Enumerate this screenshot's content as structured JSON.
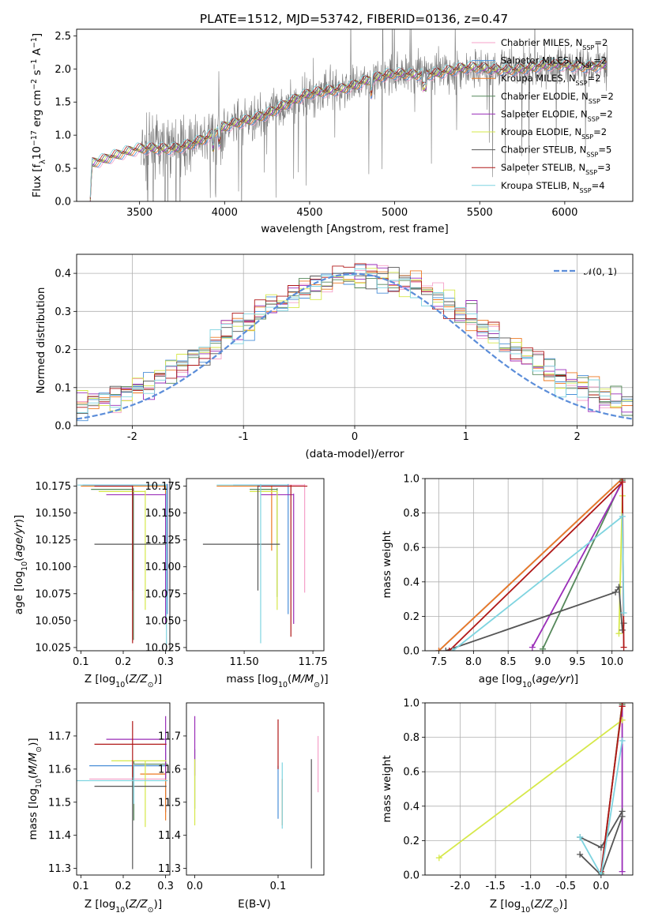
{
  "figure": {
    "title": "PLATE=1512, MJD=53742, FIBERID=0136, z=0.47"
  },
  "colors": {
    "Chabrier MILES": "#f5a0c8",
    "Salpeter MILES": "#4a8fd8",
    "Kroupa MILES": "#ee7a22",
    "Chabrier ELODIE": "#55885a",
    "Salpeter ELODIE": "#9a2db8",
    "Kroupa ELODIE": "#d6e84a",
    "Chabrier STELIB": "#555555",
    "Salpeter STELIB": "#b01818",
    "Kroupa STELIB": "#7fd4e0",
    "data": "#7a7a7a",
    "gaussian": "#5b8dd9",
    "grid": "#b0b0b0"
  },
  "chart_data": [
    {
      "id": "spectrum",
      "type": "line",
      "xlabel": "wavelength [Angstrom, rest frame]",
      "ylabel": "Flux [f_λ 10^-17 erg cm^-2 s^-1 A^-1]",
      "xlim": [
        3130,
        6400
      ],
      "ylim": [
        0,
        2.6
      ],
      "xticks": [
        3500,
        4000,
        4500,
        5000,
        5500,
        6000
      ],
      "yticks": [
        0.0,
        0.5,
        1.0,
        1.5,
        2.0,
        2.5
      ],
      "grid": false,
      "legend_position": "right",
      "continuum_knots": [
        [
          3210,
          0.0
        ],
        [
          3220,
          0.6
        ],
        [
          3250,
          0.63
        ],
        [
          3350,
          0.7
        ],
        [
          3500,
          0.76
        ],
        [
          3700,
          0.82
        ],
        [
          3900,
          0.95
        ],
        [
          4000,
          1.1
        ],
        [
          4200,
          1.3
        ],
        [
          4500,
          1.6
        ],
        [
          4800,
          1.8
        ],
        [
          5000,
          1.9
        ],
        [
          5200,
          1.95
        ],
        [
          5500,
          2.0
        ],
        [
          5800,
          2.02
        ],
        [
          6100,
          2.05
        ],
        [
          6250,
          2.08
        ]
      ],
      "data_range": [
        3510,
        6250
      ],
      "model_range": [
        3210,
        6250
      ],
      "legend": [
        {
          "label": "Chabrier MILES, N",
          "sub": "SSP",
          "suffix": "=2"
        },
        {
          "label": "Salpeter MILES, N",
          "sub": "SSP",
          "suffix": "=2"
        },
        {
          "label": "Kroupa MILES, N",
          "sub": "SSP",
          "suffix": "=2"
        },
        {
          "label": "Chabrier ELODIE, N",
          "sub": "SSP",
          "suffix": "=2"
        },
        {
          "label": "Salpeter ELODIE, N",
          "sub": "SSP",
          "suffix": "=2"
        },
        {
          "label": "Kroupa ELODIE, N",
          "sub": "SSP",
          "suffix": "=2"
        },
        {
          "label": "Chabrier STELIB, N",
          "sub": "SSP",
          "suffix": "=5"
        },
        {
          "label": "Salpeter STELIB, N",
          "sub": "SSP",
          "suffix": "=3"
        },
        {
          "label": "Kroupa STELIB, N",
          "sub": "SSP",
          "suffix": "=4"
        }
      ]
    },
    {
      "id": "residuals",
      "type": "histogram",
      "xlabel": "(data-model)/error",
      "ylabel": "Normed distribution",
      "xlim": [
        -2.5,
        2.5
      ],
      "ylim": [
        0,
        0.45
      ],
      "xticks": [
        -2,
        -1,
        0,
        1,
        2
      ],
      "yticks": [
        0.0,
        0.1,
        0.2,
        0.3,
        0.4
      ],
      "grid": true,
      "bins": 50,
      "gaussian_label": "𝒩(0, 1)",
      "legend_position": "top-right"
    },
    {
      "id": "age-vs-Z",
      "type": "scatter",
      "xlabel": "Z [log10(Z/Z⊙)]",
      "ylabel": "age [log10(age/yr)]",
      "xlim": [
        0.09,
        0.31
      ],
      "ylim": [
        10.022,
        10.182
      ],
      "xticks": [
        0.1,
        0.2,
        0.3
      ],
      "yticks": [
        10.025,
        10.05,
        10.075,
        10.1,
        10.125,
        10.15,
        10.175
      ],
      "points": [
        {
          "model": "Chabrier MILES",
          "x": 0.305,
          "xerr": [
            0.2,
            0.0
          ],
          "y": 10.176,
          "yerr": [
            0.1,
            0.001
          ]
        },
        {
          "model": "Salpeter MILES",
          "x": 0.304,
          "xerr": [
            0.2,
            0.0
          ],
          "y": 10.176,
          "yerr": [
            0.12,
            0.001
          ]
        },
        {
          "model": "Kroupa MILES",
          "x": 0.3,
          "xerr": [
            0.2,
            0.0
          ],
          "y": 10.175,
          "yerr": [
            0.06,
            0.001
          ]
        },
        {
          "model": "Chabrier ELODIE",
          "x": 0.224,
          "xerr": [
            0.1,
            0.0
          ],
          "y": 10.172,
          "yerr": [
            0.14,
            0.001
          ]
        },
        {
          "model": "Salpeter ELODIE",
          "x": 0.3,
          "xerr": [
            0.14,
            0.0
          ],
          "y": 10.167,
          "yerr": [
            0.12,
            0.001
          ]
        },
        {
          "model": "Kroupa ELODIE",
          "x": 0.252,
          "xerr": [
            0.11,
            0.001
          ],
          "y": 10.17,
          "yerr": [
            0.11,
            0.001
          ]
        },
        {
          "model": "Chabrier STELIB",
          "x": 0.222,
          "xerr": [
            0.09,
            0.08
          ],
          "y": 10.121,
          "yerr": [
            0.043,
            0.055
          ]
        },
        {
          "model": "Salpeter STELIB",
          "x": 0.222,
          "xerr": [
            0.09,
            0.0
          ],
          "y": 10.175,
          "yerr": [
            0.146,
            0.001
          ]
        },
        {
          "model": "Kroupa STELIB",
          "x": 0.302,
          "xerr": [
            0.21,
            0.0
          ],
          "y": 10.176,
          "yerr": [
            0.148,
            0.001
          ]
        }
      ]
    },
    {
      "id": "age-vs-mass",
      "type": "scatter",
      "xlabel": "mass [log10(M/M⊙)]",
      "ylabel": "",
      "xlim": [
        11.29,
        11.79
      ],
      "ylim": [
        10.022,
        10.182
      ],
      "xticks": [
        11.5,
        11.75
      ],
      "yticks": [
        10.025,
        10.05,
        10.075,
        10.1,
        10.125,
        10.15,
        10.175
      ],
      "points": [
        {
          "model": "Chabrier MILES",
          "x": 11.72,
          "xerr": [
            0.2,
            0.0
          ],
          "y": 10.176,
          "yerr": [
            0.1,
            0.001
          ]
        },
        {
          "model": "Salpeter MILES",
          "x": 11.66,
          "xerr": [
            0.2,
            0.0
          ],
          "y": 10.176,
          "yerr": [
            0.12,
            0.001
          ]
        },
        {
          "model": "Kroupa MILES",
          "x": 11.6,
          "xerr": [
            0.2,
            0.0
          ],
          "y": 10.175,
          "yerr": [
            0.06,
            0.001
          ]
        },
        {
          "model": "Chabrier ELODIE",
          "x": 11.62,
          "xerr": [
            0.1,
            0.0
          ],
          "y": 10.172,
          "yerr": [
            0.1,
            0.001
          ]
        },
        {
          "model": "Salpeter ELODIE",
          "x": 11.68,
          "xerr": [
            0.12,
            0.0
          ],
          "y": 10.167,
          "yerr": [
            0.12,
            0.001
          ]
        },
        {
          "model": "Kroupa ELODIE",
          "x": 11.62,
          "xerr": [
            0.1,
            0.0
          ],
          "y": 10.17,
          "yerr": [
            0.11,
            0.001
          ]
        },
        {
          "model": "Chabrier STELIB",
          "x": 11.55,
          "xerr": [
            0.2,
            0.08
          ],
          "y": 10.121,
          "yerr": [
            0.043,
            0.055
          ]
        },
        {
          "model": "Salpeter STELIB",
          "x": 11.67,
          "xerr": [
            0.12,
            0.06
          ],
          "y": 10.175,
          "yerr": [
            0.14,
            0.001
          ]
        },
        {
          "model": "Kroupa STELIB",
          "x": 11.56,
          "xerr": [
            0.16,
            0.1
          ],
          "y": 10.176,
          "yerr": [
            0.147,
            0.001
          ]
        }
      ]
    },
    {
      "id": "weight-vs-age",
      "type": "line",
      "xlabel": "age [log10(age/yr)]",
      "ylabel": "mass weight",
      "xlim": [
        7.3,
        10.3
      ],
      "ylim": [
        0,
        1
      ],
      "xticks": [
        7.5,
        8.0,
        8.5,
        9.0,
        9.5,
        10.0
      ],
      "yticks": [
        0.0,
        0.2,
        0.4,
        0.6,
        0.8,
        1.0
      ],
      "grid": true,
      "series": [
        {
          "model": "Chabrier MILES",
          "x": [
            7.5,
            10.15
          ],
          "y": [
            0.0,
            1.0
          ]
        },
        {
          "model": "Salpeter MILES",
          "x": [
            7.5,
            10.15
          ],
          "y": [
            0.0,
            1.0
          ]
        },
        {
          "model": "Kroupa MILES",
          "x": [
            7.5,
            10.15
          ],
          "y": [
            0.0,
            1.0
          ]
        },
        {
          "model": "Chabrier ELODIE",
          "x": [
            9.0,
            10.15
          ],
          "y": [
            0.01,
            0.99
          ]
        },
        {
          "model": "Salpeter ELODIE",
          "x": [
            8.85,
            10.15
          ],
          "y": [
            0.02,
            0.98
          ]
        },
        {
          "model": "Kroupa ELODIE",
          "x": [
            10.1,
            10.15
          ],
          "y": [
            0.1,
            0.9
          ]
        },
        {
          "model": "Chabrier STELIB",
          "x": [
            7.6,
            10.05,
            10.1,
            10.15,
            10.17
          ],
          "y": [
            0.0,
            0.34,
            0.37,
            0.12,
            0.16
          ]
        },
        {
          "model": "Salpeter STELIB",
          "x": [
            7.65,
            10.15,
            10.17
          ],
          "y": [
            0.0,
            0.98,
            0.02
          ]
        },
        {
          "model": "Kroupa STELIB",
          "x": [
            7.7,
            10.15,
            10.17
          ],
          "y": [
            0.0,
            0.78,
            0.22
          ]
        }
      ]
    },
    {
      "id": "mass-vs-Z",
      "type": "scatter",
      "xlabel": "Z [log10(Z/Z⊙)]",
      "ylabel": "mass [log10(M/M⊙)]",
      "xlim": [
        0.09,
        0.31
      ],
      "ylim": [
        11.28,
        11.8
      ],
      "xticks": [
        0.1,
        0.2,
        0.3
      ],
      "yticks": [
        11.3,
        11.4,
        11.5,
        11.6,
        11.7
      ],
      "points": [
        {
          "model": "Chabrier MILES",
          "x": 0.3,
          "xerr": [
            0.18,
            0.0
          ],
          "y": 11.57,
          "yerr": [
            0.1,
            0.08
          ]
        },
        {
          "model": "Salpeter MILES",
          "x": 0.3,
          "xerr": [
            0.18,
            0.0
          ],
          "y": 11.61,
          "yerr": [
            0.14,
            0.1
          ]
        },
        {
          "model": "Kroupa MILES",
          "x": 0.3,
          "xerr": [
            0.06,
            0.0
          ],
          "y": 11.585,
          "yerr": [
            0.14,
            0.04
          ]
        },
        {
          "model": "Chabrier ELODIE",
          "x": 0.225,
          "xerr": [
            0.0,
            0.08
          ],
          "y": 11.615,
          "yerr": [
            0.17,
            0.01
          ]
        },
        {
          "model": "Salpeter ELODIE",
          "x": 0.3,
          "xerr": [
            0.14,
            0.0
          ],
          "y": 11.69,
          "yerr": [
            0.12,
            0.07
          ]
        },
        {
          "model": "Kroupa ELODIE",
          "x": 0.252,
          "xerr": [
            0.08,
            0.05
          ],
          "y": 11.625,
          "yerr": [
            0.2,
            0.0
          ]
        },
        {
          "model": "Chabrier STELIB",
          "x": 0.222,
          "xerr": [
            0.09,
            0.08
          ],
          "y": 11.548,
          "yerr": [
            0.25,
            0.06
          ]
        },
        {
          "model": "Salpeter STELIB",
          "x": 0.222,
          "xerr": [
            0.09,
            0.08
          ],
          "y": 11.675,
          "yerr": [
            0.1,
            0.07
          ]
        },
        {
          "model": "Kroupa STELIB",
          "x": 0.225,
          "xerr": [
            0.14,
            0.08
          ],
          "y": 11.565,
          "yerr": [
            0.07,
            0.05
          ]
        }
      ]
    },
    {
      "id": "mass-vs-ebv",
      "type": "scatter",
      "xlabel": "E(B-V)",
      "ylabel": "",
      "xlim": [
        -0.01,
        0.155
      ],
      "ylim": [
        11.28,
        11.8
      ],
      "xticks": [
        0.0,
        0.1
      ],
      "yticks": [
        11.3,
        11.4,
        11.5,
        11.6,
        11.7
      ],
      "points": [
        {
          "model": "Chabrier MILES",
          "x": 0.148,
          "y": 11.6,
          "yerr": [
            0.07,
            0.1
          ]
        },
        {
          "model": "Salpeter MILES",
          "x": 0.1,
          "y": 11.55,
          "yerr": [
            0.1,
            0.06
          ]
        },
        {
          "model": "Kroupa MILES",
          "x": 0.105,
          "y": 11.52,
          "yerr": [
            0.09,
            0.05
          ]
        },
        {
          "model": "Chabrier ELODIE",
          "x": 0.0,
          "y": 11.6,
          "yerr": [
            0.12,
            0.06
          ]
        },
        {
          "model": "Salpeter ELODIE",
          "x": 0.0,
          "y": 11.68,
          "yerr": [
            0.1,
            0.08
          ]
        },
        {
          "model": "Kroupa ELODIE",
          "x": 0.0,
          "y": 11.53,
          "yerr": [
            0.1,
            0.1
          ]
        },
        {
          "model": "Chabrier STELIB",
          "x": 0.14,
          "y": 11.45,
          "yerr": [
            0.15,
            0.18
          ]
        },
        {
          "model": "Salpeter STELIB",
          "x": 0.1,
          "y": 11.65,
          "yerr": [
            0.05,
            0.1
          ]
        },
        {
          "model": "Kroupa STELIB",
          "x": 0.105,
          "y": 11.52,
          "yerr": [
            0.1,
            0.1
          ]
        }
      ]
    },
    {
      "id": "weight-vs-Z",
      "type": "line",
      "xlabel": "Z [log10(Z/Z⊙)]",
      "ylabel": "mass weight",
      "xlim": [
        -2.5,
        0.45
      ],
      "ylim": [
        0,
        1
      ],
      "xticks": [
        -2.0,
        -1.5,
        -1.0,
        -0.5,
        0.0
      ],
      "yticks": [
        0.0,
        0.2,
        0.4,
        0.6,
        0.8,
        1.0
      ],
      "grid": true,
      "series": [
        {
          "model": "Chabrier MILES",
          "x": [
            0.0,
            0.3
          ],
          "y": [
            0.0,
            1.0
          ]
        },
        {
          "model": "Salpeter MILES",
          "x": [
            0.0,
            0.3
          ],
          "y": [
            0.0,
            1.0
          ]
        },
        {
          "model": "Kroupa MILES",
          "x": [
            0.0,
            0.3
          ],
          "y": [
            0.0,
            1.0
          ]
        },
        {
          "model": "Chabrier ELODIE",
          "x": [
            0.0,
            0.3
          ],
          "y": [
            0.01,
            0.99
          ]
        },
        {
          "model": "Salpeter ELODIE",
          "x": [
            0.3,
            0.3
          ],
          "y": [
            0.02,
            0.98
          ]
        },
        {
          "model": "Kroupa ELODIE",
          "x": [
            -2.3,
            0.3
          ],
          "y": [
            0.1,
            0.9
          ]
        },
        {
          "model": "Chabrier STELIB",
          "x": [
            -0.3,
            0.0,
            0.3,
            0.3,
            0.0,
            -0.3
          ],
          "y": [
            0.12,
            0.0,
            0.34,
            0.37,
            0.16,
            0.22
          ]
        },
        {
          "model": "Salpeter STELIB",
          "x": [
            0.0,
            0.3
          ],
          "y": [
            0.02,
            0.98
          ]
        },
        {
          "model": "Kroupa STELIB",
          "x": [
            -0.3,
            0.0,
            0.3
          ],
          "y": [
            0.22,
            0.0,
            0.78
          ]
        }
      ]
    }
  ]
}
